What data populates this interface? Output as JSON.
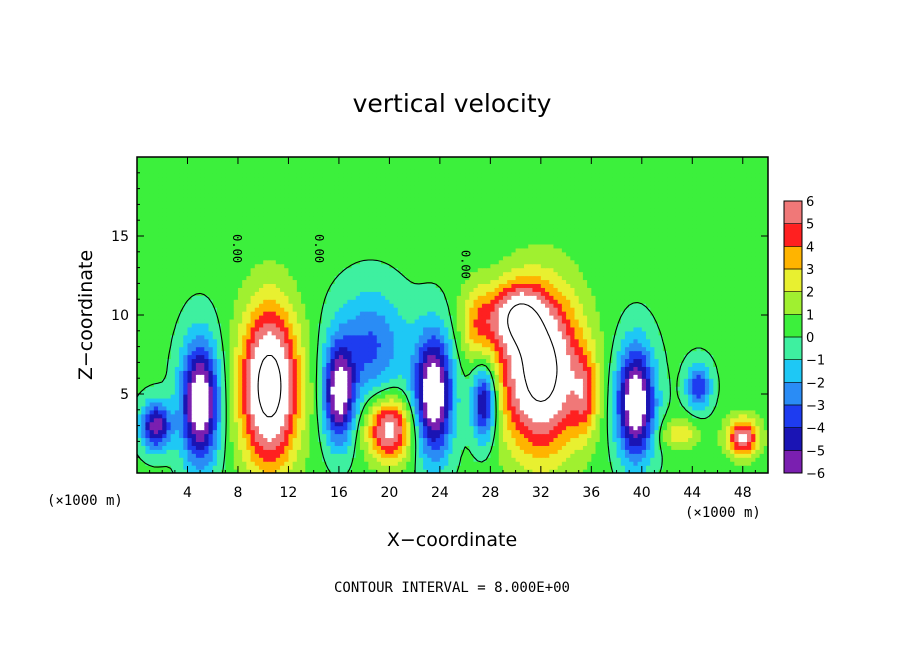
{
  "chart_data": {
    "type": "heatmap",
    "title": "vertical velocity",
    "xlabel": "X−coordinate",
    "ylabel": "Z−coordinate",
    "x_unit_left": "(×1000 m)",
    "x_unit_right": "(×1000 m)",
    "xlim": [
      0,
      50
    ],
    "ylim": [
      0,
      20
    ],
    "x_ticks": [
      4,
      8,
      12,
      16,
      20,
      24,
      28,
      32,
      36,
      40,
      44,
      48
    ],
    "y_ticks": [
      5,
      10,
      15
    ],
    "colorbar": {
      "levels": [
        -6,
        -5,
        -4,
        -3,
        -2,
        -1,
        0,
        1,
        2,
        3,
        4,
        5,
        6
      ],
      "labels": [
        "−6",
        "−5",
        "−4",
        "−3",
        "−2",
        "−1",
        "0",
        "1",
        "2",
        "3",
        "4",
        "5",
        "6"
      ]
    },
    "contour_labels": [
      {
        "text": "0.00",
        "x": 7.3,
        "y": 14.2
      },
      {
        "text": "0.00",
        "x": 13.8,
        "y": 14.2
      },
      {
        "text": "0.00",
        "x": 25.4,
        "y": 13.2
      }
    ],
    "cells": [
      {
        "x": 1.5,
        "y": 3.0,
        "sx": 1.2,
        "sy": 1.5,
        "a": -6
      },
      {
        "x": 5.0,
        "y": 4.5,
        "sx": 1.5,
        "sy": 3.8,
        "a": -8
      },
      {
        "x": 10.5,
        "y": 5.5,
        "sx": 2.3,
        "sy": 5.0,
        "a": 9
      },
      {
        "x": 16.0,
        "y": 5.0,
        "sx": 1.2,
        "sy": 3.0,
        "a": -7
      },
      {
        "x": 18.5,
        "y": 8.0,
        "sx": 2.8,
        "sy": 3.5,
        "a": -3.5
      },
      {
        "x": 20.0,
        "y": 2.8,
        "sx": 1.8,
        "sy": 2.0,
        "a": 6.5
      },
      {
        "x": 23.5,
        "y": 5.0,
        "sx": 1.5,
        "sy": 3.8,
        "a": -8
      },
      {
        "x": 27.5,
        "y": 4.5,
        "sx": 1.0,
        "sy": 2.5,
        "a": -6
      },
      {
        "x": 32.0,
        "y": 6.5,
        "sx": 3.2,
        "sy": 5.0,
        "a": 9
      },
      {
        "x": 30.0,
        "y": 10.0,
        "sx": 2.0,
        "sy": 2.0,
        "a": 5
      },
      {
        "x": 39.5,
        "y": 4.5,
        "sx": 1.5,
        "sy": 3.5,
        "a": -8
      },
      {
        "x": 44.5,
        "y": 5.5,
        "sx": 1.0,
        "sy": 1.5,
        "a": -4
      },
      {
        "x": 48.0,
        "y": 2.3,
        "sx": 1.3,
        "sy": 1.2,
        "a": 6
      },
      {
        "x": 43.0,
        "y": 2.5,
        "sx": 1.5,
        "sy": 1.0,
        "a": 2.5
      },
      {
        "x": 27.0,
        "y": 9.5,
        "sx": 1.5,
        "sy": 2.5,
        "a": 3
      },
      {
        "x": 35.5,
        "y": 5.0,
        "sx": 1.0,
        "sy": 2.5,
        "a": 3
      }
    ]
  }
}
